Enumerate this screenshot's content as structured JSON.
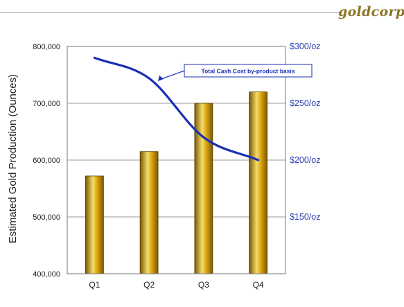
{
  "brand": {
    "logo_text": "goldcorp"
  },
  "colors": {
    "logo": "#8b7422",
    "bar_dark": "#7a5800",
    "bar_mid": "#e2ac13",
    "bar_light": "#f4dd6e",
    "line": "#1a2fb4",
    "right_axis_text": "#2a3fb0",
    "grid": "#999999"
  },
  "chart_data": {
    "type": "bar",
    "categories": [
      "Q1",
      "Q2",
      "Q3",
      "Q4"
    ],
    "series": [
      {
        "name": "",
        "type": "bar",
        "axis": "left",
        "values": [
          572000,
          615000,
          700000,
          720000
        ]
      },
      {
        "name": "Total Cash Cost  by-product basis",
        "type": "line",
        "axis": "right",
        "values": [
          290,
          272,
          220,
          200
        ]
      }
    ],
    "title": "",
    "xlabel": "",
    "ylabel": "Estimated Gold Production (Ounces)",
    "ylim": [
      400000,
      800000
    ],
    "yticks": [
      "400,000",
      "500,000",
      "600,000",
      "700,000",
      "800,000"
    ],
    "y2lim": [
      100,
      300
    ],
    "y2ticks": [
      "$150/oz",
      "$200/oz",
      "$250/oz",
      "$300/oz"
    ],
    "grid": true,
    "annotation": {
      "text": "Total Cash Cost  by-product basis"
    }
  }
}
